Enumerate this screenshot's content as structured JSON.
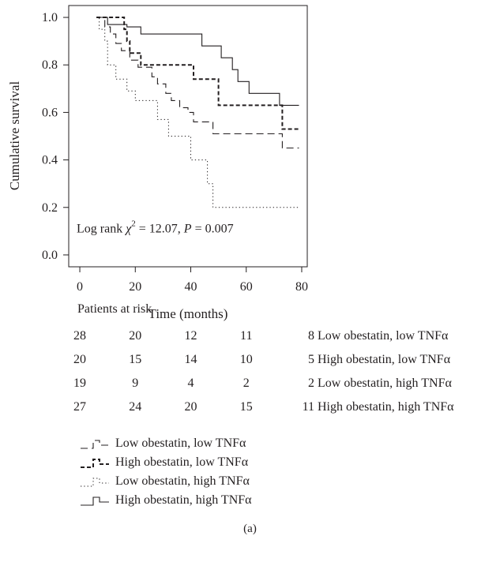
{
  "chart_data": {
    "type": "line",
    "xlabel": "Time (months)",
    "ylabel": "Cumulative survival",
    "xlim": [
      -4,
      82
    ],
    "ylim": [
      -0.05,
      1.05
    ],
    "x_ticks": [
      0,
      20,
      40,
      60,
      80
    ],
    "y_ticks": [
      0.0,
      0.2,
      0.4,
      0.6,
      0.8,
      1.0
    ],
    "y_tick_labels": [
      "0.0",
      "0.2",
      "0.4",
      "0.6",
      "0.8",
      "1.0"
    ],
    "annotation": {
      "prefix": "Log rank ",
      "chi": "χ",
      "sup": "2",
      "mid": " = 12.07, ",
      "p": "P",
      "suffix": " = 0.007"
    },
    "series": [
      {
        "name": "Low obestatin, low TNFα",
        "style": "longdash",
        "points": [
          [
            6,
            1.0
          ],
          [
            9,
            1.0
          ],
          [
            9,
            0.96
          ],
          [
            11,
            0.96
          ],
          [
            11,
            0.93
          ],
          [
            13,
            0.93
          ],
          [
            13,
            0.89
          ],
          [
            15,
            0.89
          ],
          [
            15,
            0.86
          ],
          [
            18,
            0.86
          ],
          [
            18,
            0.82
          ],
          [
            21,
            0.82
          ],
          [
            21,
            0.79
          ],
          [
            26,
            0.79
          ],
          [
            26,
            0.75
          ],
          [
            28,
            0.75
          ],
          [
            28,
            0.72
          ],
          [
            31,
            0.72
          ],
          [
            31,
            0.68
          ],
          [
            33,
            0.68
          ],
          [
            33,
            0.65
          ],
          [
            36,
            0.65
          ],
          [
            36,
            0.62
          ],
          [
            39,
            0.62
          ],
          [
            39,
            0.6
          ],
          [
            41,
            0.6
          ],
          [
            41,
            0.56
          ],
          [
            48,
            0.56
          ],
          [
            48,
            0.51
          ],
          [
            73,
            0.51
          ],
          [
            73,
            0.45
          ],
          [
            79,
            0.45
          ]
        ]
      },
      {
        "name": "High obestatin, low TNFα",
        "style": "shortdash",
        "points": [
          [
            6,
            1.0
          ],
          [
            16,
            1.0
          ],
          [
            16,
            0.95
          ],
          [
            17,
            0.95
          ],
          [
            17,
            0.9
          ],
          [
            18,
            0.9
          ],
          [
            18,
            0.85
          ],
          [
            22,
            0.85
          ],
          [
            22,
            0.8
          ],
          [
            41,
            0.8
          ],
          [
            41,
            0.74
          ],
          [
            50,
            0.74
          ],
          [
            50,
            0.63
          ],
          [
            73,
            0.63
          ],
          [
            73,
            0.53
          ],
          [
            79,
            0.53
          ]
        ]
      },
      {
        "name": "Low obestatin, high TNFα",
        "style": "dotted",
        "points": [
          [
            6,
            1.0
          ],
          [
            7,
            1.0
          ],
          [
            7,
            0.95
          ],
          [
            9,
            0.95
          ],
          [
            9,
            0.9
          ],
          [
            10,
            0.9
          ],
          [
            10,
            0.8
          ],
          [
            13,
            0.8
          ],
          [
            13,
            0.74
          ],
          [
            17,
            0.74
          ],
          [
            17,
            0.69
          ],
          [
            20,
            0.69
          ],
          [
            20,
            0.65
          ],
          [
            28,
            0.65
          ],
          [
            28,
            0.57
          ],
          [
            32,
            0.57
          ],
          [
            32,
            0.5
          ],
          [
            40,
            0.5
          ],
          [
            40,
            0.4
          ],
          [
            46,
            0.4
          ],
          [
            46,
            0.3
          ],
          [
            48,
            0.3
          ],
          [
            48,
            0.2
          ],
          [
            79,
            0.2
          ]
        ]
      },
      {
        "name": "High obestatin, high TNFα",
        "style": "solid",
        "points": [
          [
            6,
            1.0
          ],
          [
            10,
            1.0
          ],
          [
            10,
            0.97
          ],
          [
            17,
            0.97
          ],
          [
            17,
            0.96
          ],
          [
            22,
            0.96
          ],
          [
            22,
            0.93
          ],
          [
            44,
            0.93
          ],
          [
            44,
            0.88
          ],
          [
            51,
            0.88
          ],
          [
            51,
            0.83
          ],
          [
            55,
            0.83
          ],
          [
            55,
            0.78
          ],
          [
            57,
            0.78
          ],
          [
            57,
            0.73
          ],
          [
            61,
            0.73
          ],
          [
            61,
            0.68
          ],
          [
            72,
            0.68
          ],
          [
            72,
            0.63
          ],
          [
            79,
            0.63
          ]
        ]
      }
    ]
  },
  "risk_table": {
    "title": "Patients at risk",
    "rows": [
      {
        "values": [
          "28",
          "20",
          "12",
          "11",
          "8"
        ],
        "label": "Low obestatin, low TNFα"
      },
      {
        "values": [
          "20",
          "15",
          "14",
          "10",
          "5"
        ],
        "label": "High obestatin, low TNFα"
      },
      {
        "values": [
          "19",
          "9",
          "4",
          "2",
          "2"
        ],
        "label": "Low obestatin, high TNFα"
      },
      {
        "values": [
          "27",
          "24",
          "20",
          "15",
          "11"
        ],
        "label": "High obestatin, high TNFα"
      }
    ]
  },
  "legend": {
    "items": [
      {
        "label": "Low obestatin, low TNFα",
        "style": "longdash"
      },
      {
        "label": "High obestatin, low TNFα",
        "style": "shortdash"
      },
      {
        "label": "Low obestatin, high TNFα",
        "style": "dotted"
      },
      {
        "label": "High obestatin, high TNFα",
        "style": "solid"
      }
    ]
  },
  "caption": "(a)",
  "colors": {
    "ink": "#231f20",
    "background": "#ffffff"
  }
}
